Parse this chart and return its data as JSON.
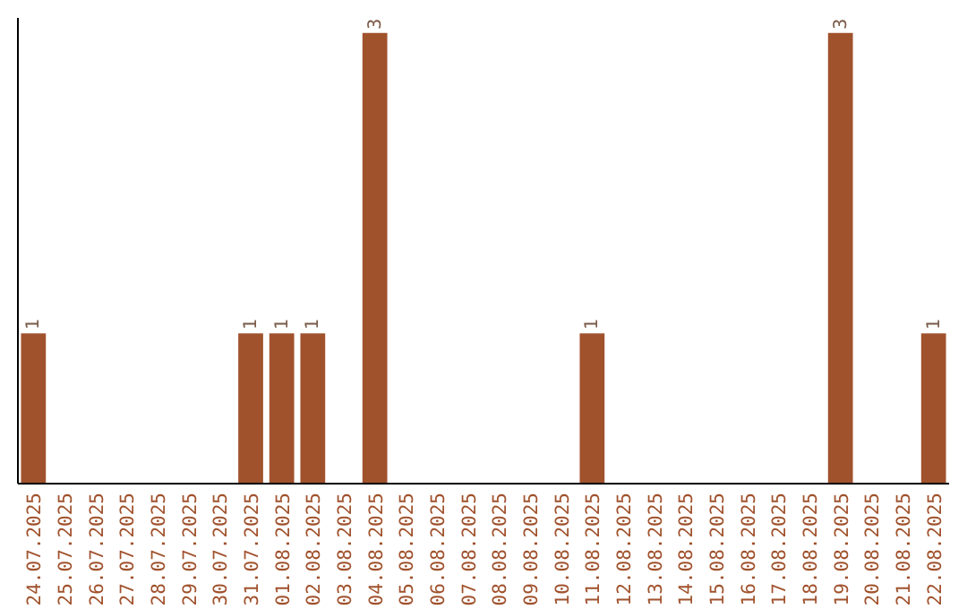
{
  "chart_data": {
    "type": "bar",
    "categories": [
      "24.07.2025",
      "25.07.2025",
      "26.07.2025",
      "27.07.2025",
      "28.07.2025",
      "29.07.2025",
      "30.07.2025",
      "31.07.2025",
      "01.08.2025",
      "02.08.2025",
      "03.08.2025",
      "04.08.2025",
      "05.08.2025",
      "06.08.2025",
      "07.08.2025",
      "08.08.2025",
      "09.08.2025",
      "10.08.2025",
      "11.08.2025",
      "12.08.2025",
      "13.08.2025",
      "14.08.2025",
      "15.08.2025",
      "16.08.2025",
      "17.08.2025",
      "18.08.2025",
      "19.08.2025",
      "20.08.2025",
      "21.08.2025",
      "22.08.2025"
    ],
    "values": [
      1,
      0,
      0,
      0,
      0,
      0,
      0,
      1,
      1,
      1,
      0,
      3,
      0,
      0,
      0,
      0,
      0,
      0,
      1,
      0,
      0,
      0,
      0,
      0,
      0,
      0,
      3,
      0,
      0,
      1
    ],
    "value_labels": [
      "1",
      null,
      null,
      null,
      null,
      null,
      null,
      "1",
      "1",
      "1",
      null,
      "3",
      null,
      null,
      null,
      null,
      null,
      null,
      "1",
      null,
      null,
      null,
      null,
      null,
      null,
      null,
      "3",
      null,
      null,
      "1"
    ],
    "color": "#a0522d",
    "ylim": [
      0,
      3.1
    ],
    "tick_labels": "x"
  }
}
